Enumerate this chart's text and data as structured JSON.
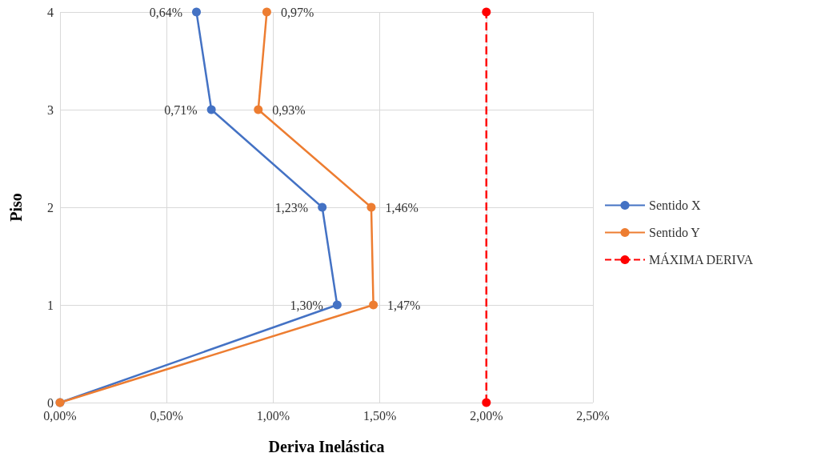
{
  "chart_data": {
    "type": "line",
    "orientation": "horizontal",
    "xlabel": "Deriva Inelástica",
    "ylabel": "Piso",
    "xlim": [
      0,
      2.5
    ],
    "xticks": [
      {
        "value": 0,
        "label": "0,00%"
      },
      {
        "value": 0.5,
        "label": "0,50%"
      },
      {
        "value": 1,
        "label": "1,00%"
      },
      {
        "value": 1.5,
        "label": "1,50%"
      },
      {
        "value": 2,
        "label": "2,00%"
      },
      {
        "value": 2.5,
        "label": "2,50%"
      }
    ],
    "ylim": [
      0,
      4
    ],
    "yticks": [
      0,
      1,
      2,
      3,
      4
    ],
    "grid": true,
    "legend": "right",
    "marker": "circle",
    "series": [
      {
        "name": "Sentido X",
        "color": "#4472c4",
        "x": [
          0,
          1,
          2,
          3,
          4
        ],
        "values": [
          0,
          1.3,
          1.23,
          0.71,
          0.64
        ],
        "value_labels": [
          null,
          "1,30%",
          "1,23%",
          "0,71%",
          "0,64%"
        ]
      },
      {
        "name": "Sentido Y",
        "color": "#ed7d31",
        "x": [
          0,
          1,
          2,
          3,
          4
        ],
        "values": [
          0,
          1.47,
          1.46,
          0.93,
          0.97
        ],
        "value_labels": [
          null,
          "1,47%",
          "1,46%",
          "0,93%",
          "0,97%"
        ]
      },
      {
        "name": "MÁXIMA DERIVA",
        "color": "#ff0000",
        "x": [
          0,
          4
        ],
        "values": [
          2,
          2
        ],
        "line_style": "dashed"
      }
    ]
  }
}
